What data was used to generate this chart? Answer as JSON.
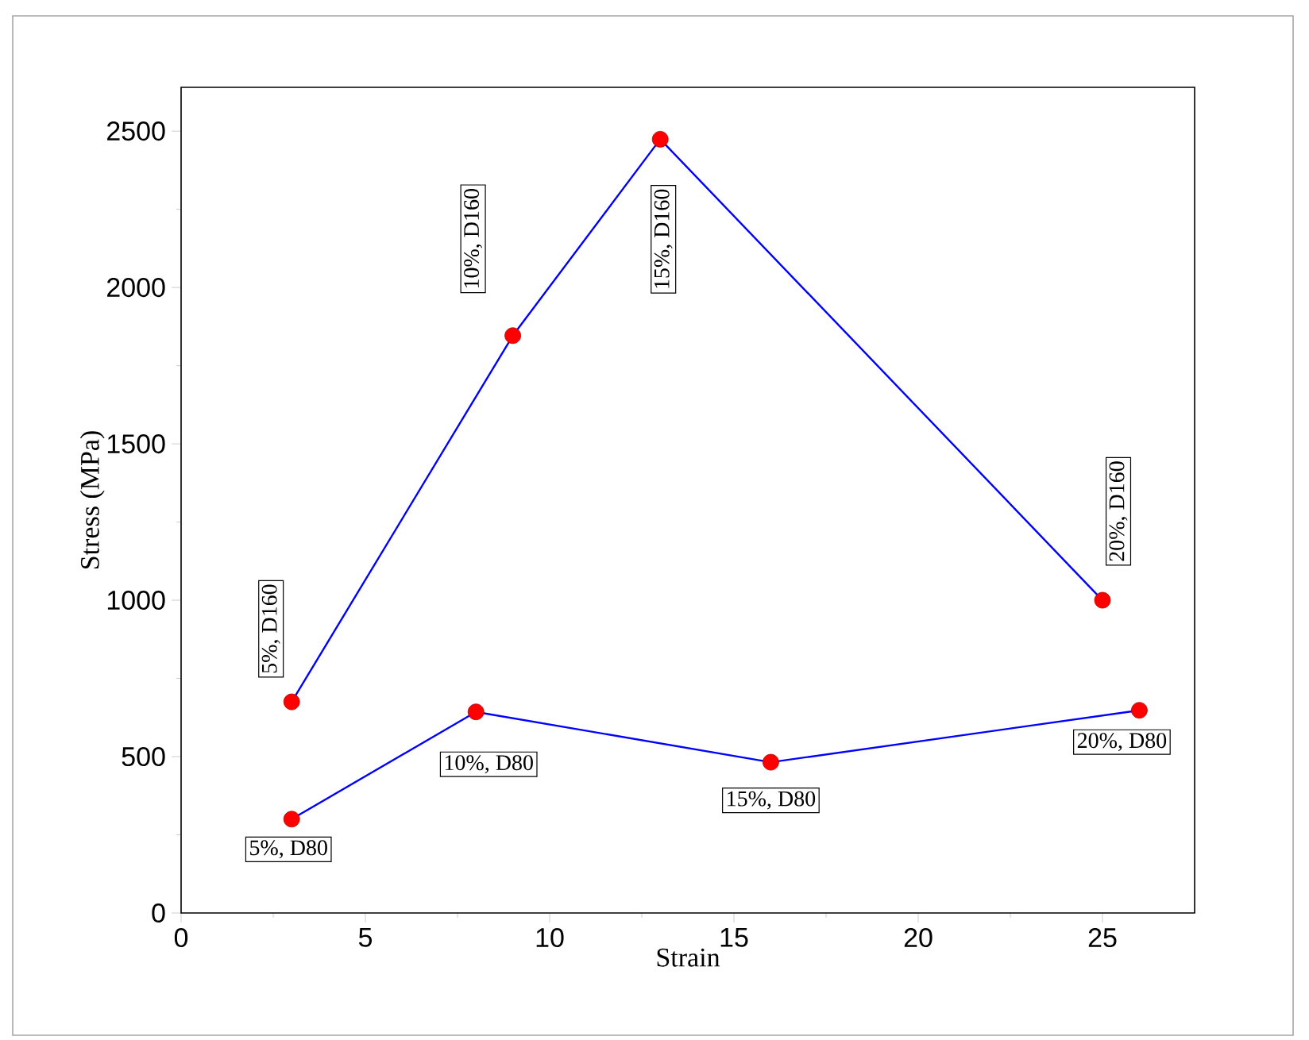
{
  "chart_data": {
    "type": "line",
    "xlabel": "Strain",
    "ylabel": "Stress (MPa)",
    "xlim": [
      0,
      27.5
    ],
    "ylim": [
      0,
      2640
    ],
    "xticks": [
      0,
      5,
      10,
      15,
      20,
      25
    ],
    "yticks": [
      0,
      500,
      1000,
      1500,
      2000,
      2500
    ],
    "marker": "circle",
    "line_style": "solid",
    "grid": false,
    "series": [
      {
        "color": "#0000ff",
        "colors": [
          "#ff0000",
          "#ff0000",
          "#ff0000",
          "#ff0000"
        ],
        "x": [
          3,
          9,
          13,
          25
        ],
        "values": [
          675,
          1846,
          2474,
          1000
        ]
      },
      {
        "color": "#0000ff",
        "colors": [
          "#ff0000",
          "#ff0000",
          "#ff0000",
          "#ff0000"
        ],
        "x": [
          3,
          8,
          16,
          26
        ],
        "values": [
          300,
          643,
          482,
          648
        ]
      }
    ],
    "annotations": [
      {
        "text": "5%, D160",
        "x": 3,
        "y": 675
      },
      {
        "text": "10%, D160",
        "x": 9,
        "y": 1846
      },
      {
        "text": "15%, D160",
        "x": 13,
        "y": 2474
      },
      {
        "text": "20%, D160",
        "x": 25,
        "y": 1000
      },
      {
        "text": "5%, D80",
        "x": 3,
        "y": 300
      },
      {
        "text": "10%, D80",
        "x": 8,
        "y": 643
      },
      {
        "text": "15%, D80",
        "x": 16,
        "y": 482
      },
      {
        "text": "20%, D80",
        "x": 26,
        "y": 648
      }
    ]
  }
}
